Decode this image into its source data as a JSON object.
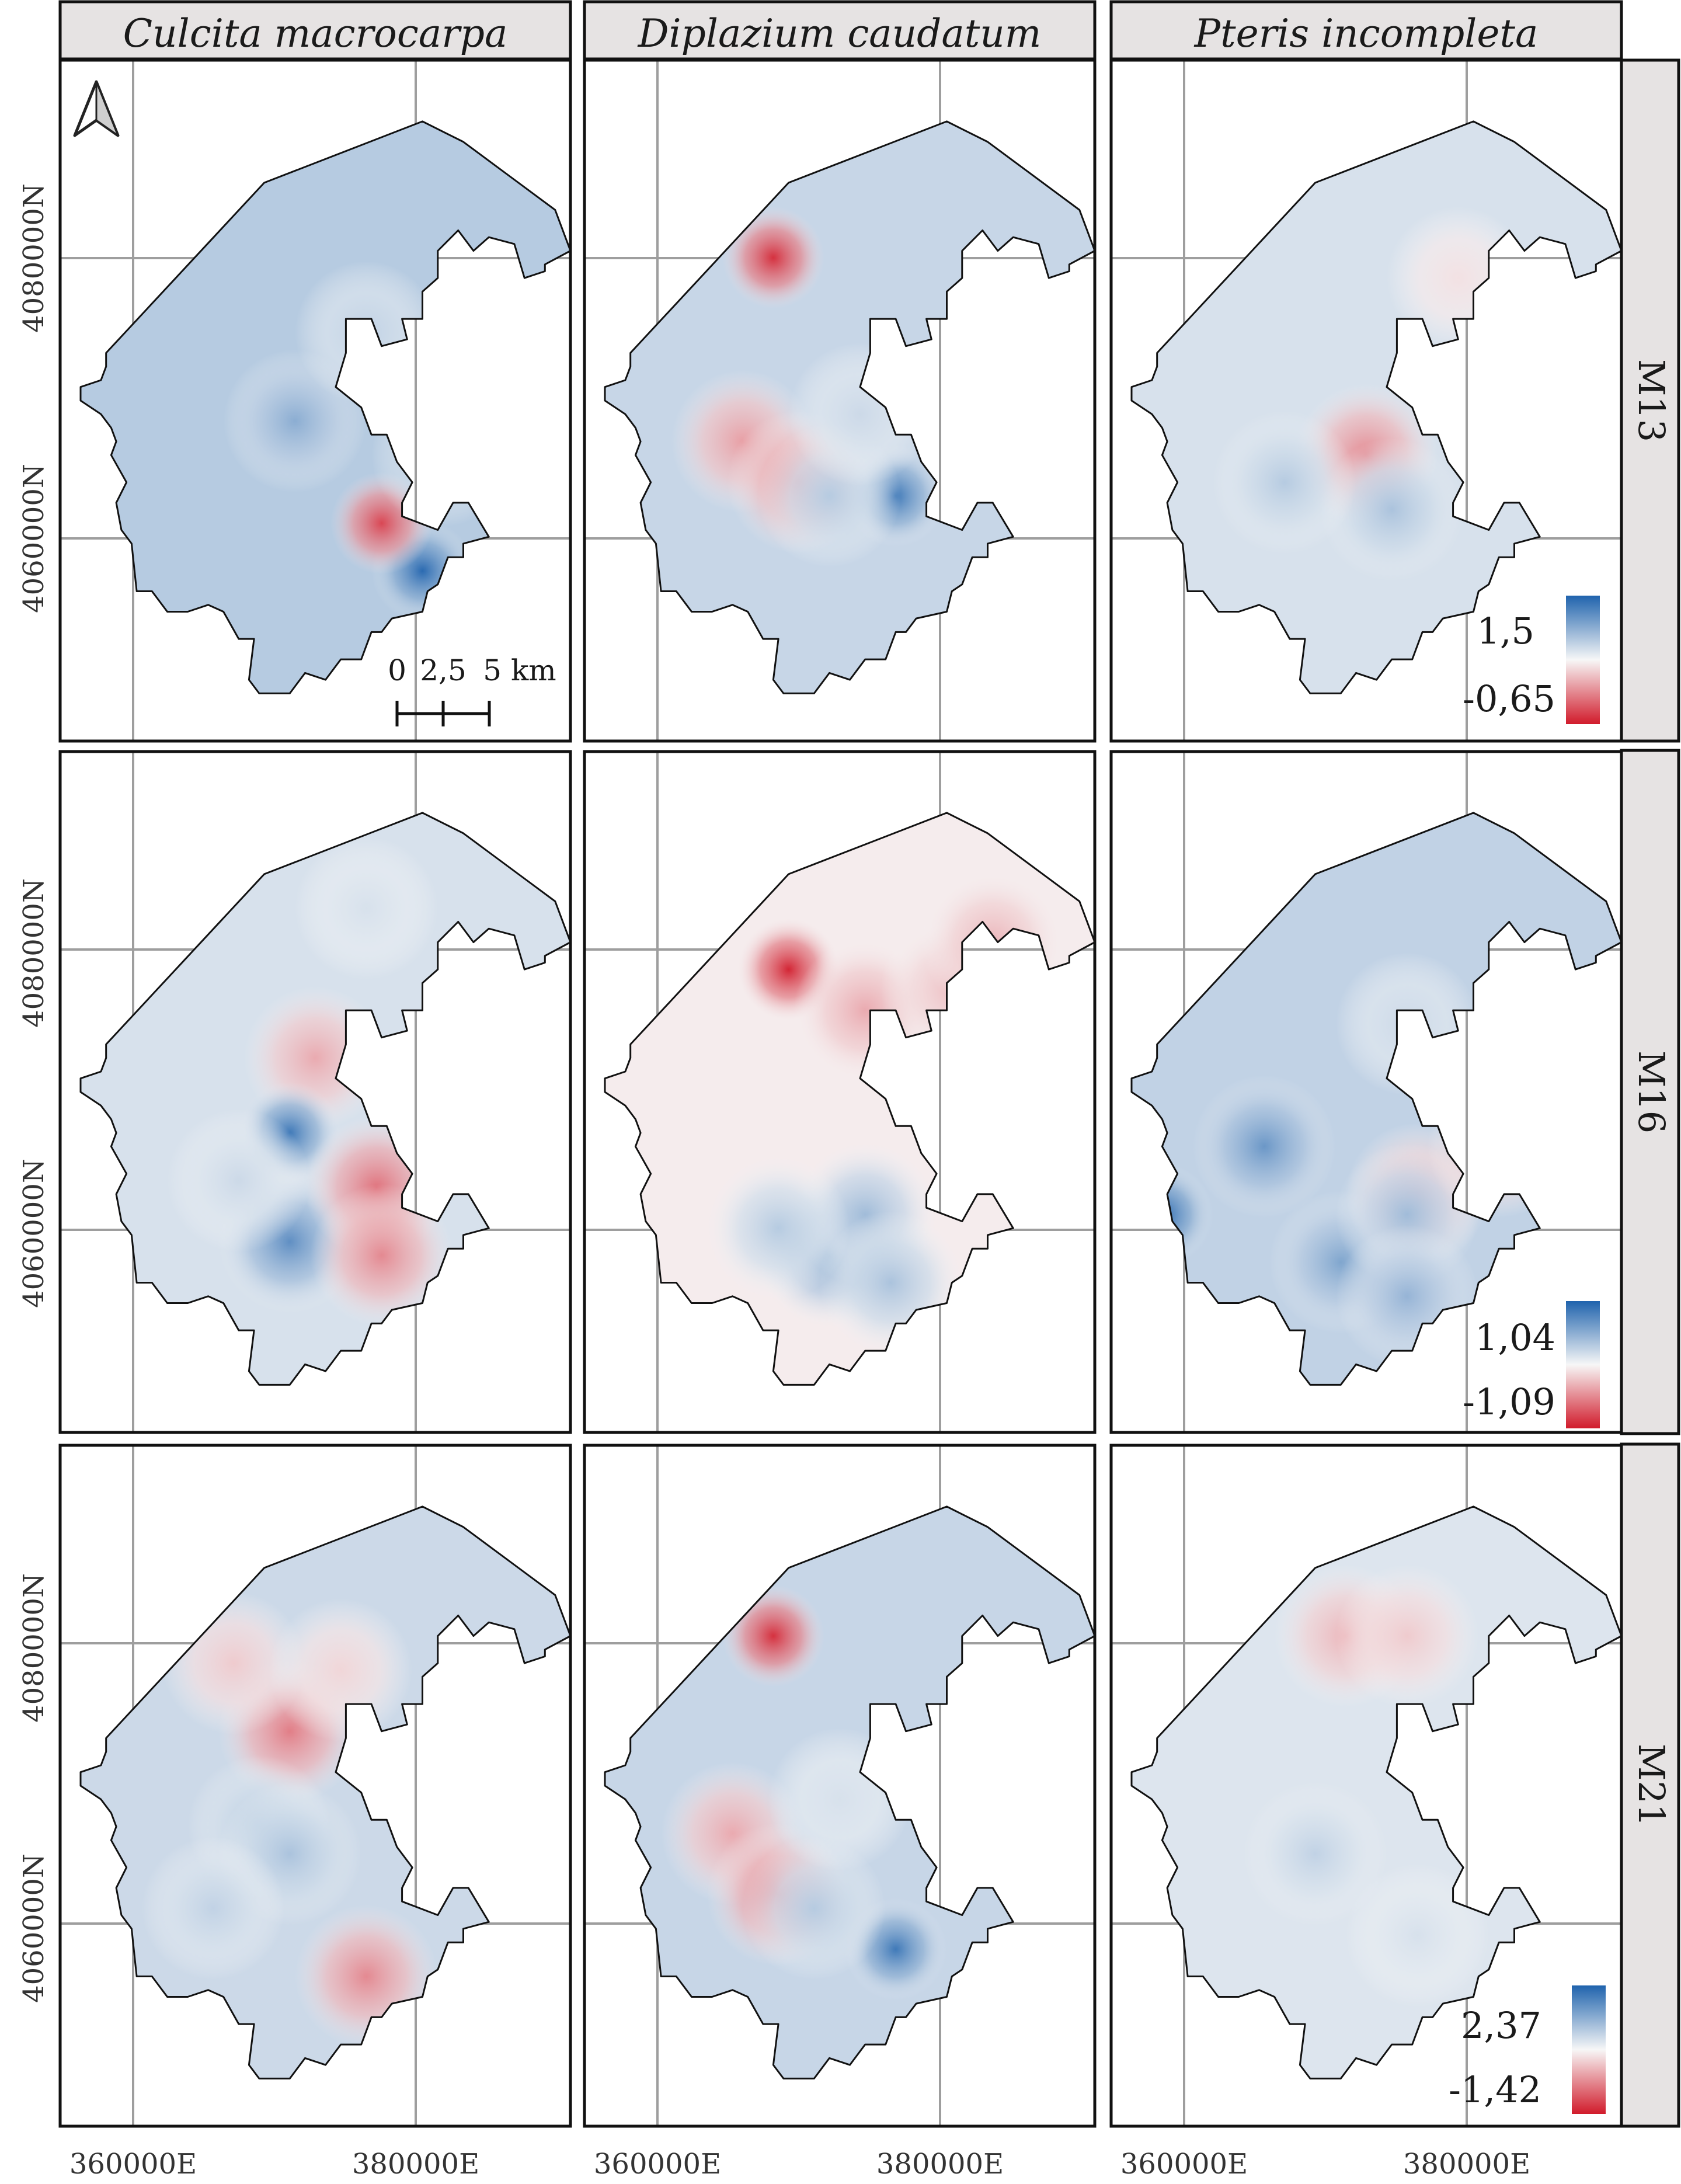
{
  "columns": [
    "Culcita macrocarpa",
    "Diplazium caudatum",
    "Pteris incompleta"
  ],
  "rows": [
    "M13",
    "M16",
    "M21"
  ],
  "x_axis_ticks": [
    "360000E",
    "380000E"
  ],
  "y_axis_ticks": [
    "4080000N",
    "4060000N"
  ],
  "legends": [
    {
      "max": "1,5",
      "min": "-0,65"
    },
    {
      "max": "1,04",
      "min": "-1,09"
    },
    {
      "max": "2,37",
      "min": "-1,42"
    }
  ],
  "scale_bar": {
    "labels": [
      "0",
      "2,5",
      "5 km"
    ]
  },
  "north_arrow": "north-arrow-icon",
  "colors": {
    "positive": "#1f63ad",
    "neutral": "#f7f7f7",
    "negative": "#d11b2b",
    "grid": "#9e9e9e",
    "strip": "#e6e3e3",
    "outline": "#111111"
  },
  "panels": [
    [
      {
        "hotspots": [
          [
            71,
            75,
            -0.95
          ],
          [
            63,
            68,
            0.8
          ],
          [
            46,
            53,
            -0.5
          ],
          [
            82,
            49,
            0.6
          ],
          [
            84,
            53,
            0.7
          ],
          [
            75,
            58,
            -0.35
          ],
          [
            60,
            40,
            -0.25
          ]
        ],
        "base": -0.3
      },
      {
        "hotspots": [
          [
            37,
            29,
            0.9
          ],
          [
            31,
            56,
            0.4
          ],
          [
            42,
            62,
            0.5
          ],
          [
            61,
            64,
            -0.85
          ],
          [
            48,
            64,
            -0.3
          ],
          [
            54,
            52,
            -0.2
          ]
        ],
        "base": -0.22
      },
      {
        "hotspots": [
          [
            50,
            58,
            0.5
          ],
          [
            55,
            66,
            -0.35
          ],
          [
            68,
            32,
            0.1
          ],
          [
            34,
            62,
            -0.3
          ]
        ],
        "base": -0.15
      }
    ],
    [
      {
        "hotspots": [
          [
            50,
            45,
            0.35
          ],
          [
            45,
            56,
            -0.85
          ],
          [
            45,
            72,
            -0.7
          ],
          [
            62,
            64,
            0.6
          ],
          [
            63,
            74,
            0.5
          ],
          [
            35,
            63,
            -0.2
          ],
          [
            60,
            23,
            -0.15
          ]
        ],
        "base": -0.15
      },
      {
        "hotspots": [
          [
            40,
            32,
            0.95
          ],
          [
            55,
            38,
            0.35
          ],
          [
            48,
            74,
            -0.55
          ],
          [
            55,
            68,
            -0.4
          ],
          [
            60,
            78,
            -0.35
          ],
          [
            38,
            70,
            -0.3
          ],
          [
            72,
            35,
            0.25
          ],
          [
            80,
            28,
            0.3
          ]
        ],
        "base": 0.05
      },
      {
        "hotspots": [
          [
            10,
            68,
            -0.95
          ],
          [
            30,
            58,
            -0.65
          ],
          [
            45,
            75,
            -0.55
          ],
          [
            60,
            65,
            0.3
          ],
          [
            58,
            68,
            -0.4
          ],
          [
            58,
            80,
            -0.45
          ],
          [
            76,
            58,
            0.25
          ],
          [
            58,
            40,
            -0.2
          ]
        ],
        "base": -0.25
      }
    ],
    [
      {
        "hotspots": [
          [
            45,
            42,
            0.55
          ],
          [
            39,
            56,
            -0.3
          ],
          [
            45,
            60,
            -0.35
          ],
          [
            60,
            78,
            0.5
          ],
          [
            34,
            32,
            0.2
          ],
          [
            55,
            33,
            0.15
          ],
          [
            30,
            68,
            -0.25
          ]
        ],
        "base": -0.2
      },
      {
        "hotspots": [
          [
            37,
            28,
            0.9
          ],
          [
            29,
            57,
            0.35
          ],
          [
            38,
            66,
            0.55
          ],
          [
            61,
            74,
            -0.85
          ],
          [
            45,
            68,
            -0.3
          ],
          [
            50,
            52,
            -0.15
          ]
        ],
        "base": -0.22
      },
      {
        "hotspots": [
          [
            46,
            28,
            0.3
          ],
          [
            58,
            28,
            0.2
          ],
          [
            40,
            60,
            -0.25
          ],
          [
            60,
            72,
            -0.15
          ]
        ],
        "base": -0.12
      }
    ]
  ]
}
